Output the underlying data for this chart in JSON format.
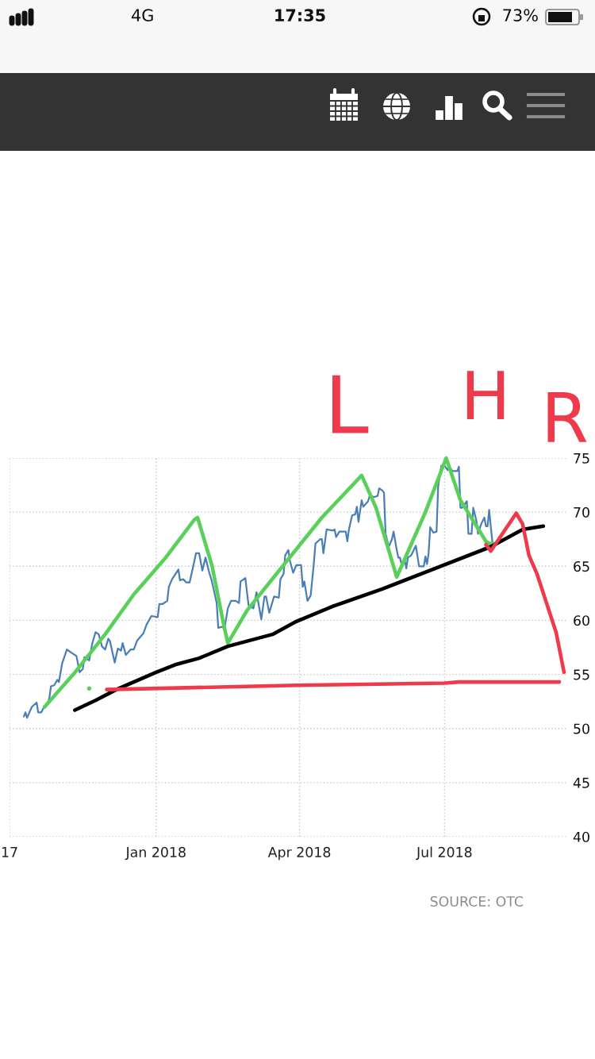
{
  "chart_data": {
    "type": "line",
    "xlim": [
      "2017-10-01",
      "2018-09-16"
    ],
    "xticks": [
      {
        "value": "2017-10-01",
        "label": "17"
      },
      {
        "value": "2018-01-01",
        "label": "Jan 2018"
      },
      {
        "value": "2018-04-01",
        "label": "Apr 2018"
      },
      {
        "value": "2018-07-01",
        "label": "Jul 2018"
      }
    ],
    "ylim": [
      40,
      75
    ],
    "yticks": [
      40,
      45,
      50,
      55,
      60,
      65,
      70,
      75
    ],
    "grid": true,
    "series": [
      {
        "color": "#4a7eb6",
        "x": [
          "2017-10-10",
          "2017-10-11",
          "2017-10-12",
          "2017-10-15",
          "2017-10-18",
          "2017-10-19",
          "2017-10-21",
          "2017-10-23",
          "2017-10-25",
          "2017-10-26",
          "2017-10-27",
          "2017-10-29",
          "2017-10-31",
          "2017-11-01",
          "2017-11-03",
          "2017-11-06",
          "2017-11-09",
          "2017-11-12",
          "2017-11-14",
          "2017-11-16",
          "2017-11-17",
          "2017-11-20",
          "2017-11-22",
          "2017-11-24",
          "2017-11-26",
          "2017-11-28",
          "2017-11-30",
          "2017-12-02",
          "2017-12-03",
          "2017-12-06",
          "2017-12-08",
          "2017-12-10",
          "2017-12-11",
          "2017-12-13",
          "2017-12-16",
          "2017-12-18",
          "2017-12-20",
          "2017-12-24",
          "2017-12-26",
          "2017-12-29",
          "2018-01-02",
          "2018-01-03",
          "2018-01-05",
          "2018-01-08",
          "2018-01-09",
          "2018-01-11",
          "2018-01-15",
          "2018-01-16",
          "2018-01-18",
          "2018-01-20",
          "2018-01-22",
          "2018-01-24",
          "2018-01-26",
          "2018-01-28",
          "2018-01-30",
          "2018-02-01",
          "2018-02-03",
          "2018-02-05",
          "2018-02-08",
          "2018-02-09",
          "2018-02-11",
          "2018-02-13",
          "2018-02-15",
          "2018-02-17",
          "2018-02-20",
          "2018-02-22",
          "2018-02-23",
          "2018-02-26",
          "2018-02-28",
          "2018-03-03",
          "2018-03-05",
          "2018-03-08",
          "2018-03-10",
          "2018-03-11",
          "2018-03-13",
          "2018-03-16",
          "2018-03-19",
          "2018-03-20",
          "2018-03-22",
          "2018-03-23",
          "2018-03-25",
          "2018-03-26",
          "2018-03-28",
          "2018-03-30",
          "2018-04-02",
          "2018-04-03",
          "2018-04-04",
          "2018-04-06",
          "2018-04-08",
          "2018-04-10",
          "2018-04-11",
          "2018-04-14",
          "2018-04-15",
          "2018-04-16",
          "2018-04-18",
          "2018-04-22",
          "2018-04-23",
          "2018-04-24",
          "2018-04-26",
          "2018-04-30",
          "2018-05-01",
          "2018-05-02",
          "2018-05-04",
          "2018-05-06",
          "2018-05-07",
          "2018-05-08",
          "2018-05-10",
          "2018-05-11",
          "2018-05-14",
          "2018-05-15",
          "2018-05-18",
          "2018-05-20",
          "2018-05-21",
          "2018-05-23",
          "2018-05-24",
          "2018-05-25",
          "2018-05-27",
          "2018-05-29",
          "2018-05-30",
          "2018-06-01",
          "2018-06-02",
          "2018-06-03",
          "2018-06-04",
          "2018-06-06",
          "2018-06-07",
          "2018-06-08",
          "2018-06-10",
          "2018-06-13",
          "2018-06-15",
          "2018-06-18",
          "2018-06-19",
          "2018-06-20",
          "2018-06-21",
          "2018-06-22",
          "2018-06-24",
          "2018-06-26",
          "2018-06-27",
          "2018-06-29",
          "2018-07-01",
          "2018-07-03",
          "2018-07-04",
          "2018-07-06",
          "2018-07-09",
          "2018-07-10",
          "2018-07-11",
          "2018-07-12",
          "2018-07-15",
          "2018-07-16",
          "2018-07-18",
          "2018-07-19",
          "2018-07-21",
          "2018-07-22",
          "2018-07-24",
          "2018-07-26",
          "2018-07-27",
          "2018-07-28",
          "2018-07-29",
          "2018-07-30",
          "2018-07-31"
        ],
        "values": [
          51.1,
          51.5,
          51.0,
          52.0,
          52.4,
          51.5,
          51.5,
          52.1,
          52.4,
          52.8,
          53.9,
          54.0,
          54.5,
          54.3,
          56.0,
          57.3,
          57.0,
          56.7,
          55.2,
          55.5,
          56.6,
          56.3,
          57.9,
          58.9,
          58.7,
          57.6,
          57.3,
          58.3,
          58.1,
          56.1,
          57.4,
          57.2,
          57.9,
          56.8,
          57.3,
          57.3,
          58.1,
          58.8,
          59.6,
          60.4,
          60.3,
          61.5,
          61.5,
          61.8,
          63.1,
          63.8,
          64.7,
          63.7,
          63.8,
          63.5,
          63.5,
          64.8,
          66.2,
          66.2,
          64.6,
          65.8,
          64.6,
          63.6,
          61.6,
          59.3,
          59.4,
          59.3,
          61.1,
          61.8,
          61.8,
          61.6,
          63.6,
          63.9,
          61.4,
          61.1,
          62.6,
          60.1,
          62.2,
          62.2,
          60.7,
          62.2,
          62.1,
          63.8,
          64.3,
          66.0,
          66.5,
          65.5,
          64.4,
          65.1,
          65.1,
          63.1,
          63.6,
          61.8,
          62.3,
          65.3,
          67.1,
          67.5,
          67.5,
          66.2,
          68.4,
          68.3,
          68.4,
          67.7,
          68.2,
          68.2,
          67.3,
          68.4,
          69.7,
          69.8,
          70.5,
          69.1,
          71.1,
          70.5,
          71.0,
          71.5,
          71.4,
          71.5,
          72.2,
          72.0,
          71.8,
          68.0,
          66.8,
          67.5,
          68.2,
          66.5,
          65.8,
          65.8,
          65.2,
          65.6,
          64.8,
          65.8,
          66.0,
          66.9,
          65.0,
          65.0,
          65.9,
          65.2,
          66.2,
          68.6,
          68.1,
          68.2,
          72.4,
          74.3,
          74.3,
          73.9,
          74.2,
          73.8,
          73.8,
          74.2,
          70.4,
          70.4,
          71.0,
          68.0,
          68.0,
          70.4,
          69.2,
          68.0,
          68.9,
          69.5,
          68.7,
          68.7,
          70.2,
          68.7,
          67.3
        ]
      },
      {
        "color": "#5ad05a",
        "x": [
          "2017-10-23",
          "2017-11-10",
          "2017-11-30",
          "2017-12-18",
          "2018-01-07",
          "2018-01-25",
          "2018-01-27",
          "2018-02-05",
          "2018-02-12",
          "2018-02-15",
          "2018-02-27",
          "2018-03-23",
          "2018-04-15",
          "2018-05-10",
          "2018-05-19",
          "2018-06-01",
          "2018-06-19",
          "2018-07-02",
          "2018-07-11",
          "2018-07-27",
          "2018-07-29",
          "2018-08-01"
        ],
        "values": [
          52.0,
          55.0,
          58.7,
          62.4,
          65.8,
          69.3,
          69.5,
          65.1,
          59.9,
          57.9,
          60.9,
          65.3,
          69.5,
          73.4,
          70.4,
          64.0,
          70.0,
          75.0,
          71.1,
          67.3,
          67.1,
          67.1
        ]
      },
      {
        "type": "scatter",
        "marker": "circle",
        "color": "#5ad05a",
        "x": [
          "2017-11-20"
        ],
        "values": [
          53.7
        ]
      },
      {
        "color": "#000000",
        "x": [
          "2017-11-11",
          "2017-11-24",
          "2017-12-07",
          "2018-01-01",
          "2018-01-13",
          "2018-01-28",
          "2018-02-15",
          "2018-03-15",
          "2018-03-30",
          "2018-04-22",
          "2018-05-23",
          "2018-06-25",
          "2018-07-30",
          "2018-08-19",
          "2018-09-01"
        ],
        "values": [
          51.7,
          52.6,
          53.6,
          55.2,
          55.9,
          56.5,
          57.6,
          58.7,
          59.9,
          61.3,
          62.9,
          64.8,
          66.8,
          68.4,
          68.7
        ]
      },
      {
        "color": "#ef3a4c",
        "x": [
          "2017-12-01",
          "2018-03-30",
          "2018-07-01",
          "2018-07-10",
          "2018-09-11"
        ],
        "values": [
          53.6,
          54.0,
          54.2,
          54.3,
          54.3
        ]
      },
      {
        "color": "#ef3a4c",
        "x": [
          "2018-07-27",
          "2018-07-30",
          "2018-08-15",
          "2018-08-19",
          "2018-08-23",
          "2018-08-28",
          "2018-09-03",
          "2018-09-09",
          "2018-09-14"
        ],
        "values": [
          67.0,
          66.4,
          69.9,
          68.9,
          66.0,
          64.3,
          61.6,
          58.9,
          55.2
        ]
      }
    ],
    "annotations": [
      "L",
      "H",
      "R",
      "SOURCE: OTC",
      "4G",
      "17:35",
      "73%"
    ]
  }
}
